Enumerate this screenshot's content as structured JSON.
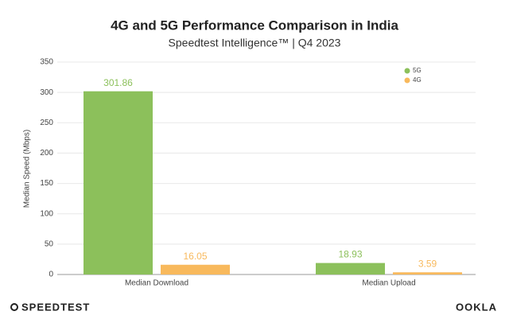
{
  "chart_data": {
    "type": "bar",
    "title": "4G and 5G Performance Comparison in India",
    "subtitle": "Speedtest Intelligence™ | Q4 2023",
    "y_label": "Median Speed (Mbps)",
    "categories": [
      "Median Download",
      "Median Upload"
    ],
    "series": [
      {
        "name": "5G",
        "color": "#8cc05b",
        "values": [
          301.86,
          18.93
        ]
      },
      {
        "name": "4G",
        "color": "#f8b95c",
        "values": [
          16.05,
          3.59
        ]
      }
    ],
    "ylim": [
      0,
      350
    ],
    "yticks": [
      0,
      50,
      100,
      150,
      200,
      250,
      300,
      350
    ],
    "grid": true,
    "legend": "upper right"
  },
  "footer": {
    "left": "SPEEDTEST",
    "right": "OOKLA"
  }
}
